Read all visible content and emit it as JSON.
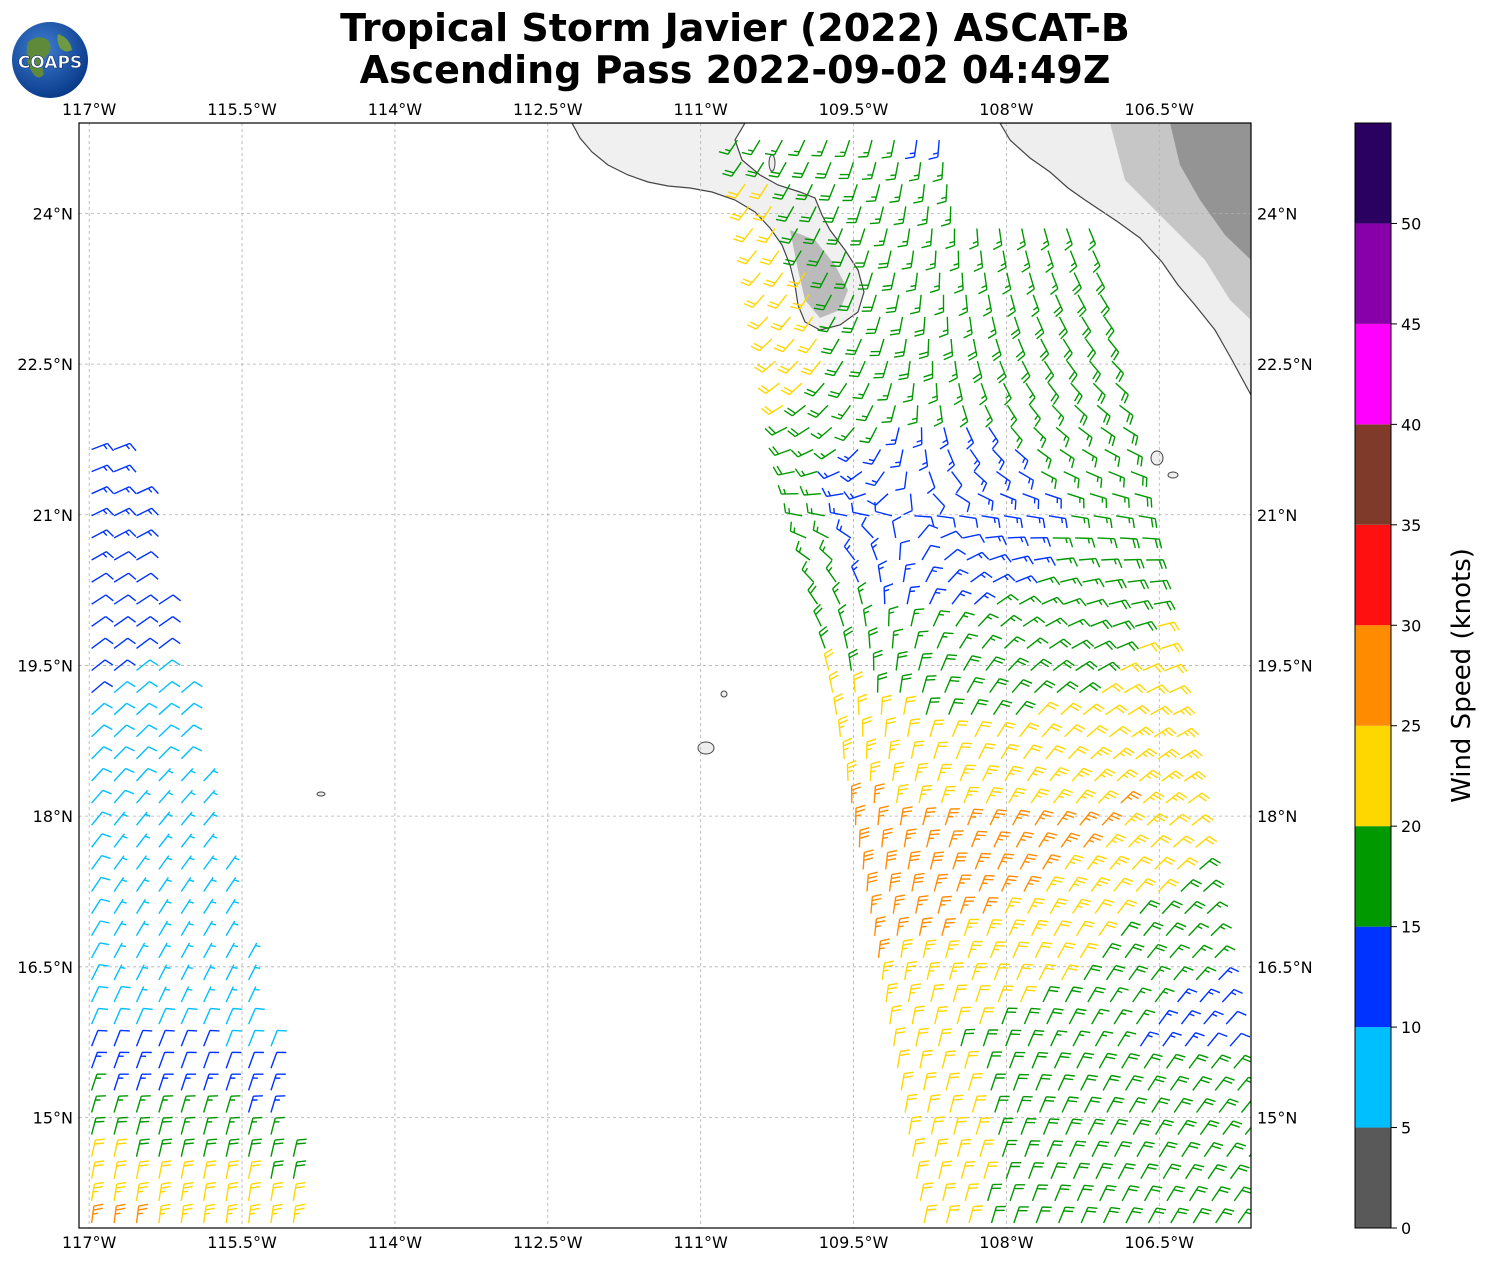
{
  "title": {
    "line1": "Tropical Storm Javier (2022) ASCAT-B",
    "line2": "Ascending Pass 2022-09-02 04:49Z"
  },
  "logo": {
    "text": "COAPS",
    "icon": "globe-logo-icon"
  },
  "map": {
    "lon_range": [
      -117.1,
      -105.6
    ],
    "lat_range": [
      13.9,
      24.9
    ],
    "lon_ticks": [
      {
        "value": -117.0,
        "label": "117°W"
      },
      {
        "value": -115.5,
        "label": "115.5°W"
      },
      {
        "value": -114.0,
        "label": "114°W"
      },
      {
        "value": -112.5,
        "label": "112.5°W"
      },
      {
        "value": -111.0,
        "label": "111°W"
      },
      {
        "value": -109.5,
        "label": "109.5°W"
      },
      {
        "value": -108.0,
        "label": "108°W"
      },
      {
        "value": -106.5,
        "label": "106.5°W"
      }
    ],
    "lat_ticks": [
      {
        "value": 24.0,
        "label": "24°N"
      },
      {
        "value": 22.5,
        "label": "22.5°N"
      },
      {
        "value": 21.0,
        "label": "21°N"
      },
      {
        "value": 19.5,
        "label": "19.5°N"
      },
      {
        "value": 18.0,
        "label": "18°N"
      },
      {
        "value": 16.5,
        "label": "16.5°N"
      },
      {
        "value": 15.0,
        "label": "15°N"
      }
    ],
    "grid": true,
    "colors": {
      "coast": "#444444",
      "grid": "#b0b0b0",
      "land": "#f2f2f2",
      "terrain": "#9a9a9a"
    }
  },
  "colorbar": {
    "label": "Wind Speed (knots)",
    "min": 0,
    "max": 55,
    "bins": [
      {
        "from": 0,
        "to": 5,
        "color": "#595959"
      },
      {
        "from": 5,
        "to": 10,
        "color": "#00bfff"
      },
      {
        "from": 10,
        "to": 15,
        "color": "#0033ff"
      },
      {
        "from": 15,
        "to": 20,
        "color": "#009900"
      },
      {
        "from": 20,
        "to": 25,
        "color": "#ffd700"
      },
      {
        "from": 25,
        "to": 30,
        "color": "#ff8c00"
      },
      {
        "from": 30,
        "to": 35,
        "color": "#ff1010"
      },
      {
        "from": 35,
        "to": 40,
        "color": "#803a2a"
      },
      {
        "from": 40,
        "to": 45,
        "color": "#ff00ff"
      },
      {
        "from": 45,
        "to": 50,
        "color": "#8800aa"
      },
      {
        "from": 50,
        "to": 55,
        "color": "#2a0060"
      }
    ],
    "ticks": [
      "0",
      "5",
      "10",
      "15",
      "20",
      "25",
      "30",
      "35",
      "40",
      "45",
      "50"
    ]
  },
  "swaths": [
    {
      "name": "west-swath",
      "center_lon": -116.55,
      "half_width_lon": 0.9,
      "tilt_deg_per_lat": -0.12
    },
    {
      "name": "east-swath",
      "center_lon": -108.0,
      "half_width_lon": 1.75,
      "tilt_deg_per_lat": -0.17
    }
  ],
  "storm_center": {
    "lon": -109.0,
    "lat": 21.0
  }
}
